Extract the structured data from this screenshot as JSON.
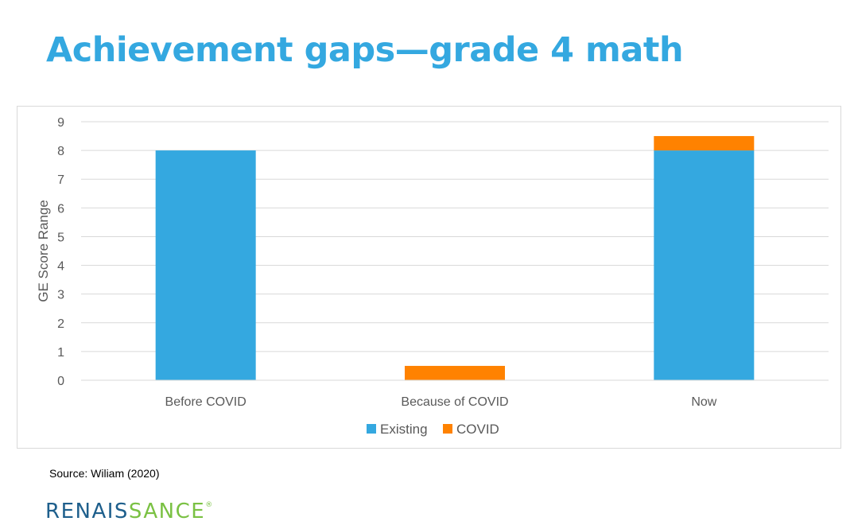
{
  "slide": {
    "title": "Achievement gaps—grade 4 math",
    "source": "Source: Wiliam (2020)",
    "logo_part1": "RENAIS",
    "logo_part2": "SANCE",
    "logo_mark": "®"
  },
  "chart_data": {
    "type": "bar",
    "stacked": true,
    "categories": [
      "Before COVID",
      "Because of COVID",
      "Now"
    ],
    "series": [
      {
        "name": "Existing",
        "values": [
          8,
          0,
          8
        ],
        "color": "#34a8e0"
      },
      {
        "name": "COVID",
        "values": [
          0,
          0.5,
          0.5
        ],
        "color": "#ff8200"
      }
    ],
    "ylabel": "GE  Score Range",
    "ylim": [
      0,
      9
    ],
    "yticks": [
      0,
      1,
      2,
      3,
      4,
      5,
      6,
      7,
      8,
      9
    ],
    "grid": true,
    "legend": "bottom"
  }
}
